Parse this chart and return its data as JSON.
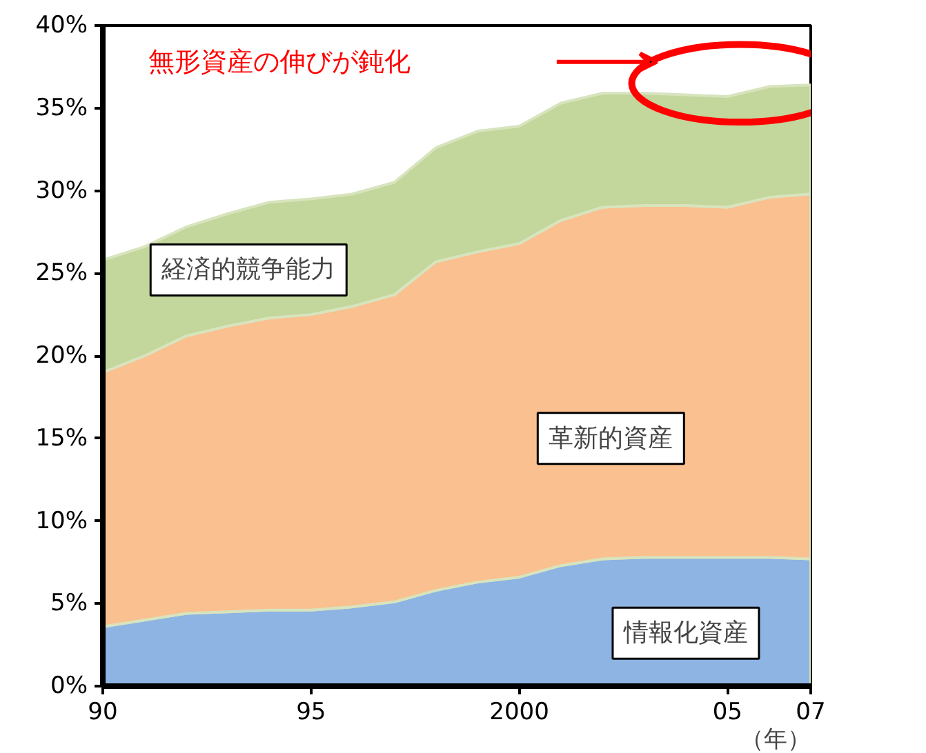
{
  "chart_data": {
    "type": "area",
    "stacked": true,
    "xlabel": "（年）",
    "x": [
      1990,
      1991,
      1992,
      1993,
      1994,
      1995,
      1996,
      1997,
      1998,
      1999,
      2000,
      2001,
      2002,
      2003,
      2004,
      2005,
      2006,
      2007
    ],
    "series": [
      {
        "name": "情報化資産",
        "color": "#8eb4e3",
        "values": [
          3.6,
          4.0,
          4.4,
          4.5,
          4.6,
          4.6,
          4.8,
          5.1,
          5.8,
          6.3,
          6.6,
          7.3,
          7.7,
          7.8,
          7.8,
          7.8,
          7.8,
          7.7
        ]
      },
      {
        "name": "革新的資産",
        "color": "#fac090",
        "values": [
          15.4,
          16.0,
          16.8,
          17.3,
          17.7,
          17.9,
          18.2,
          18.6,
          19.9,
          20.0,
          20.2,
          20.9,
          21.3,
          21.3,
          21.3,
          21.2,
          21.8,
          22.1
        ]
      },
      {
        "name": "経済的競争能力",
        "color": "#c3d69b",
        "values": [
          6.8,
          6.6,
          6.6,
          6.8,
          7.0,
          7.0,
          6.8,
          6.8,
          6.9,
          7.3,
          7.1,
          7.1,
          6.9,
          6.8,
          6.7,
          6.7,
          6.7,
          6.6
        ]
      }
    ],
    "xlim": [
      1990,
      2007
    ],
    "xticks": [
      {
        "value": 1990,
        "label": "90"
      },
      {
        "value": 1995,
        "label": "95"
      },
      2000,
      {
        "value": 2005,
        "label": "05"
      },
      {
        "value": 2007,
        "label": "07"
      }
    ],
    "ylim": [
      0,
      40
    ],
    "yticks": [
      {
        "value": 0,
        "label": "0%"
      },
      {
        "value": 5,
        "label": "5%"
      },
      {
        "value": 10,
        "label": "10%"
      },
      {
        "value": 15,
        "label": "15%"
      },
      {
        "value": 20,
        "label": "20%"
      },
      {
        "value": 25,
        "label": "25%"
      },
      {
        "value": 30,
        "label": "30%"
      },
      {
        "value": 35,
        "label": "35%"
      },
      {
        "value": 40,
        "label": "40%"
      }
    ],
    "annotations": [
      "無形資産の伸びが鈍化"
    ],
    "grid": false
  }
}
